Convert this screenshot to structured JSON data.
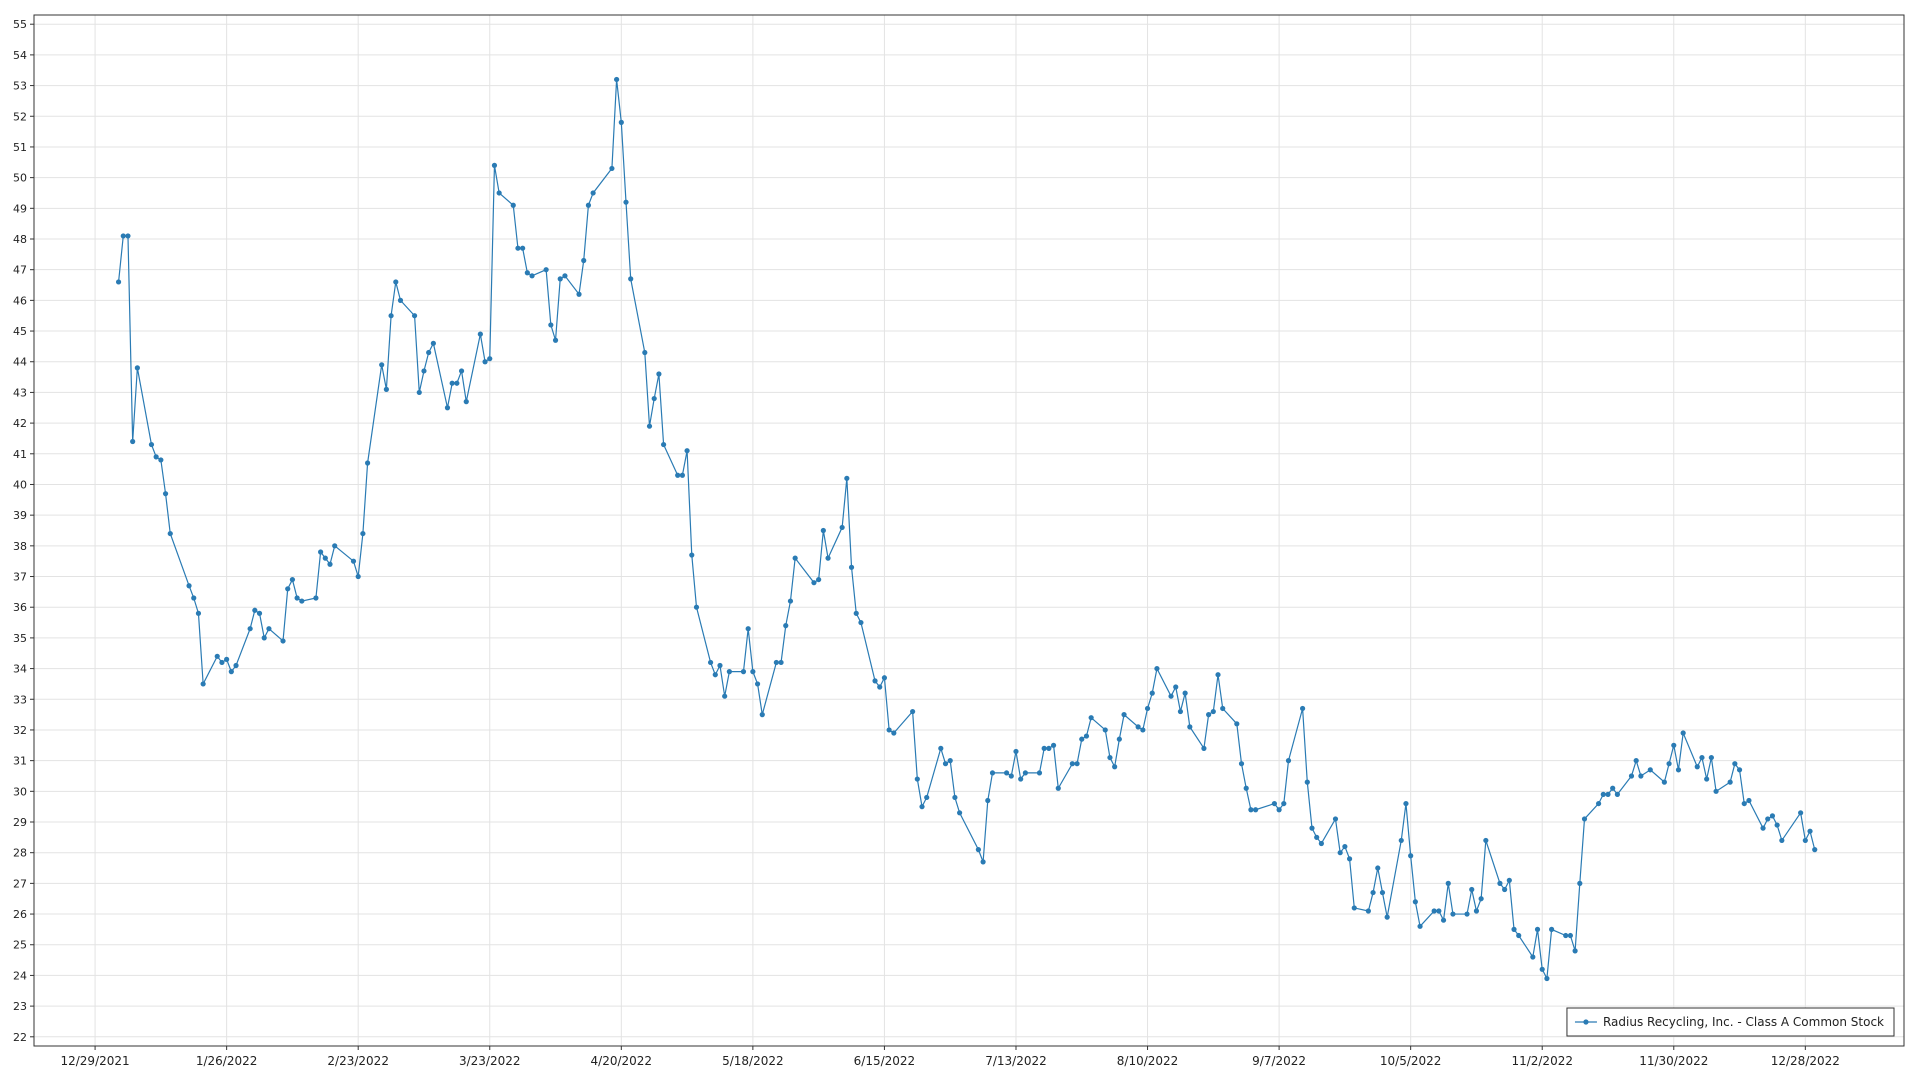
{
  "chart_data": {
    "type": "line",
    "x": [
      "1/3/2022",
      "1/4/2022",
      "1/5/2022",
      "1/6/2022",
      "1/7/2022",
      "1/10/2022",
      "1/11/2022",
      "1/12/2022",
      "1/13/2022",
      "1/14/2022",
      "1/18/2022",
      "1/19/2022",
      "1/20/2022",
      "1/21/2022",
      "1/24/2022",
      "1/25/2022",
      "1/26/2022",
      "1/27/2022",
      "1/28/2022",
      "1/31/2022",
      "2/1/2022",
      "2/2/2022",
      "2/3/2022",
      "2/4/2022",
      "2/7/2022",
      "2/8/2022",
      "2/9/2022",
      "2/10/2022",
      "2/11/2022",
      "2/14/2022",
      "2/15/2022",
      "2/16/2022",
      "2/17/2022",
      "2/18/2022",
      "2/22/2022",
      "2/23/2022",
      "2/24/2022",
      "2/25/2022",
      "2/28/2022",
      "3/1/2022",
      "3/2/2022",
      "3/3/2022",
      "3/4/2022",
      "3/7/2022",
      "3/8/2022",
      "3/9/2022",
      "3/10/2022",
      "3/11/2022",
      "3/14/2022",
      "3/15/2022",
      "3/16/2022",
      "3/17/2022",
      "3/18/2022",
      "3/21/2022",
      "3/22/2022",
      "3/23/2022",
      "3/24/2022",
      "3/25/2022",
      "3/28/2022",
      "3/29/2022",
      "3/30/2022",
      "3/31/2022",
      "4/1/2022",
      "4/4/2022",
      "4/5/2022",
      "4/6/2022",
      "4/7/2022",
      "4/8/2022",
      "4/11/2022",
      "4/12/2022",
      "4/13/2022",
      "4/14/2022",
      "4/18/2022",
      "4/19/2022",
      "4/20/2022",
      "4/21/2022",
      "4/22/2022",
      "4/25/2022",
      "4/26/2022",
      "4/27/2022",
      "4/28/2022",
      "4/29/2022",
      "5/2/2022",
      "5/3/2022",
      "5/4/2022",
      "5/5/2022",
      "5/6/2022",
      "5/9/2022",
      "5/10/2022",
      "5/11/2022",
      "5/12/2022",
      "5/13/2022",
      "5/16/2022",
      "5/17/2022",
      "5/18/2022",
      "5/19/2022",
      "5/20/2022",
      "5/23/2022",
      "5/24/2022",
      "5/25/2022",
      "5/26/2022",
      "5/27/2022",
      "5/31/2022",
      "6/1/2022",
      "6/2/2022",
      "6/3/2022",
      "6/6/2022",
      "6/7/2022",
      "6/8/2022",
      "6/9/2022",
      "6/10/2022",
      "6/13/2022",
      "6/14/2022",
      "6/15/2022",
      "6/16/2022",
      "6/17/2022",
      "6/21/2022",
      "6/22/2022",
      "6/23/2022",
      "6/24/2022",
      "6/27/2022",
      "6/28/2022",
      "6/29/2022",
      "6/30/2022",
      "7/1/2022",
      "7/5/2022",
      "7/6/2022",
      "7/7/2022",
      "7/8/2022",
      "7/11/2022",
      "7/12/2022",
      "7/13/2022",
      "7/14/2022",
      "7/15/2022",
      "7/18/2022",
      "7/19/2022",
      "7/20/2022",
      "7/21/2022",
      "7/22/2022",
      "7/25/2022",
      "7/26/2022",
      "7/27/2022",
      "7/28/2022",
      "7/29/2022",
      "8/1/2022",
      "8/2/2022",
      "8/3/2022",
      "8/4/2022",
      "8/5/2022",
      "8/8/2022",
      "8/9/2022",
      "8/10/2022",
      "8/11/2022",
      "8/12/2022",
      "8/15/2022",
      "8/16/2022",
      "8/17/2022",
      "8/18/2022",
      "8/19/2022",
      "8/22/2022",
      "8/23/2022",
      "8/24/2022",
      "8/25/2022",
      "8/26/2022",
      "8/29/2022",
      "8/30/2022",
      "8/31/2022",
      "9/1/2022",
      "9/2/2022",
      "9/6/2022",
      "9/7/2022",
      "9/8/2022",
      "9/9/2022",
      "9/12/2022",
      "9/13/2022",
      "9/14/2022",
      "9/15/2022",
      "9/16/2022",
      "9/19/2022",
      "9/20/2022",
      "9/21/2022",
      "9/22/2022",
      "9/23/2022",
      "9/26/2022",
      "9/27/2022",
      "9/28/2022",
      "9/29/2022",
      "9/30/2022",
      "10/3/2022",
      "10/4/2022",
      "10/5/2022",
      "10/6/2022",
      "10/7/2022",
      "10/10/2022",
      "10/11/2022",
      "10/12/2022",
      "10/13/2022",
      "10/14/2022",
      "10/17/2022",
      "10/18/2022",
      "10/19/2022",
      "10/20/2022",
      "10/21/2022",
      "10/24/2022",
      "10/25/2022",
      "10/26/2022",
      "10/27/2022",
      "10/28/2022",
      "10/31/2022",
      "11/1/2022",
      "11/2/2022",
      "11/3/2022",
      "11/4/2022",
      "11/7/2022",
      "11/8/2022",
      "11/9/2022",
      "11/10/2022",
      "11/11/2022",
      "11/14/2022",
      "11/15/2022",
      "11/16/2022",
      "11/17/2022",
      "11/18/2022",
      "11/21/2022",
      "11/22/2022",
      "11/23/2022",
      "11/25/2022",
      "11/28/2022",
      "11/29/2022",
      "11/30/2022",
      "12/1/2022",
      "12/2/2022",
      "12/5/2022",
      "12/6/2022",
      "12/7/2022",
      "12/8/2022",
      "12/9/2022",
      "12/12/2022",
      "12/13/2022",
      "12/14/2022",
      "12/15/2022",
      "12/16/2022",
      "12/19/2022",
      "12/20/2022",
      "12/21/2022",
      "12/22/2022",
      "12/23/2022",
      "12/27/2022",
      "12/28/2022",
      "12/29/2022",
      "12/30/2022"
    ],
    "series": [
      {
        "name": "Radius Recycling, Inc. - Class A Common Stock",
        "color": "#2a7bb4",
        "values": [
          46.6,
          48.1,
          48.1,
          41.4,
          43.8,
          41.3,
          40.9,
          40.8,
          39.7,
          38.4,
          36.7,
          36.3,
          35.8,
          33.5,
          34.4,
          34.2,
          34.3,
          33.9,
          34.1,
          35.3,
          35.9,
          35.8,
          35.0,
          35.3,
          34.9,
          36.6,
          36.9,
          36.3,
          36.2,
          36.3,
          37.8,
          37.6,
          37.4,
          38.0,
          37.5,
          37.0,
          38.4,
          40.7,
          43.9,
          43.1,
          45.5,
          46.6,
          46.0,
          45.5,
          43.0,
          43.7,
          44.3,
          44.6,
          42.5,
          43.3,
          43.3,
          43.7,
          42.7,
          44.9,
          44.0,
          44.1,
          50.4,
          49.5,
          49.1,
          47.7,
          47.7,
          46.9,
          46.8,
          47.0,
          45.2,
          44.7,
          46.7,
          46.8,
          46.2,
          47.3,
          49.1,
          49.5,
          50.3,
          53.2,
          51.8,
          49.2,
          46.7,
          44.3,
          41.9,
          42.8,
          43.6,
          41.3,
          40.3,
          40.3,
          41.1,
          37.7,
          36.0,
          34.2,
          33.8,
          34.1,
          33.1,
          33.9,
          33.9,
          35.3,
          33.9,
          33.5,
          32.5,
          34.2,
          34.2,
          35.4,
          36.2,
          37.6,
          36.8,
          36.9,
          38.5,
          37.6,
          38.6,
          40.2,
          37.3,
          35.8,
          35.5,
          33.6,
          33.4,
          33.7,
          32.0,
          31.9,
          32.6,
          30.4,
          29.5,
          29.8,
          31.4,
          30.9,
          31.0,
          29.8,
          29.3,
          28.1,
          27.7,
          29.7,
          30.6,
          30.6,
          30.5,
          31.3,
          30.4,
          30.6,
          30.6,
          31.4,
          31.4,
          31.5,
          30.1,
          30.9,
          30.9,
          31.7,
          31.8,
          32.4,
          32.0,
          31.1,
          30.8,
          31.7,
          32.5,
          32.1,
          32.0,
          32.7,
          33.2,
          34.0,
          33.1,
          33.4,
          32.6,
          33.2,
          32.1,
          31.4,
          32.5,
          32.6,
          33.8,
          32.7,
          32.2,
          30.9,
          30.1,
          29.4,
          29.4,
          29.6,
          29.4,
          29.6,
          31.0,
          32.7,
          30.3,
          28.8,
          28.5,
          28.3,
          29.1,
          28.0,
          28.2,
          27.8,
          26.2,
          26.1,
          26.7,
          27.5,
          26.7,
          25.9,
          28.4,
          29.6,
          27.9,
          26.4,
          25.6,
          26.1,
          26.1,
          25.8,
          27.0,
          26.0,
          26.0,
          26.8,
          26.1,
          26.5,
          28.4,
          27.0,
          26.8,
          27.1,
          25.5,
          25.3,
          24.6,
          25.5,
          24.2,
          23.9,
          25.5,
          25.3,
          25.3,
          24.8,
          27.0,
          29.1,
          29.6,
          29.9,
          29.9,
          30.1,
          29.9,
          30.5,
          31.0,
          30.5,
          30.7,
          30.3,
          30.9,
          31.5,
          30.7,
          31.9,
          30.8,
          31.1,
          30.4,
          31.1,
          30.0,
          30.3,
          30.9,
          30.7,
          29.6,
          29.7,
          28.8,
          29.1,
          29.2,
          28.9,
          28.4,
          29.3,
          28.4,
          28.7,
          28.1
        ]
      }
    ],
    "xlim": [
      "12/16/2021",
      "1/18/2023"
    ],
    "xticks": [
      "12/29/2021",
      "1/26/2022",
      "2/23/2022",
      "3/23/2022",
      "4/20/2022",
      "5/18/2022",
      "6/15/2022",
      "7/13/2022",
      "8/10/2022",
      "9/7/2022",
      "10/5/2022",
      "11/2/2022",
      "11/30/2022",
      "12/28/2022"
    ],
    "ylim": [
      21.7,
      55.3
    ],
    "yticks": [
      22,
      23,
      24,
      25,
      26,
      27,
      28,
      29,
      30,
      31,
      32,
      33,
      34,
      35,
      36,
      37,
      38,
      39,
      40,
      41,
      42,
      43,
      44,
      45,
      46,
      47,
      48,
      49,
      50,
      51,
      52,
      53,
      54,
      55
    ],
    "grid": true,
    "legend": "lower right",
    "markers": true
  }
}
